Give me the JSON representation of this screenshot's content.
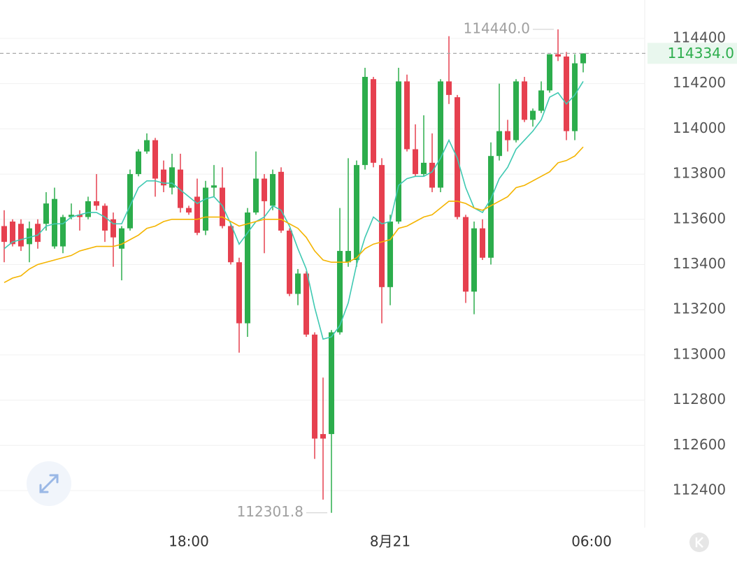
{
  "chart_data": {
    "type": "candlestick",
    "x": [
      0,
      1,
      2,
      3,
      4,
      5,
      6,
      7,
      8,
      9,
      10,
      11,
      12,
      13,
      14,
      15,
      16,
      17,
      18,
      19,
      20,
      21,
      22,
      23,
      24,
      25,
      26,
      27,
      28,
      29,
      30,
      31,
      32,
      33,
      34,
      35,
      36,
      37,
      38,
      39,
      40,
      41,
      42,
      43,
      44,
      45,
      46,
      47,
      48,
      49,
      50,
      51,
      52,
      53,
      54,
      55,
      56,
      57,
      58,
      59,
      60,
      61,
      62,
      63,
      64,
      65,
      66,
      67,
      68,
      69
    ],
    "open": [
      113570,
      113590,
      113580,
      113490,
      113580,
      113580,
      113480,
      113480,
      113610,
      113620,
      113610,
      113680,
      113660,
      113600,
      113470,
      113560,
      113800,
      113900,
      113950,
      113820,
      113740,
      113820,
      113650,
      113700,
      113550,
      113740,
      113740,
      113570,
      113410,
      113140,
      113630,
      113780,
      113660,
      113810,
      113550,
      113270,
      113360,
      113090,
      112650,
      112650,
      113100,
      113410,
      113420,
      113840,
      114220,
      113840,
      113300,
      113590,
      114210,
      113910,
      113800,
      113850,
      113740,
      114210,
      114140,
      113610,
      113280,
      113560,
      113430,
      113880,
      113990,
      113950,
      114210,
      114040,
      114080,
      114170,
      114330,
      114320,
      113990,
      114290
    ],
    "high": [
      113640,
      113600,
      113600,
      113590,
      113600,
      113720,
      113740,
      113620,
      113670,
      113640,
      113700,
      113800,
      113670,
      113630,
      113570,
      113820,
      113910,
      113980,
      113960,
      113860,
      113890,
      113890,
      113660,
      113780,
      113770,
      113840,
      113830,
      113580,
      113430,
      113650,
      113900,
      113800,
      113820,
      113830,
      113560,
      113380,
      113370,
      113100,
      112900,
      113110,
      113650,
      113870,
      113860,
      114270,
      114230,
      113870,
      113620,
      114270,
      114240,
      114020,
      114060,
      113980,
      114220,
      114410,
      114150,
      113620,
      113590,
      113600,
      113940,
      114200,
      114040,
      114220,
      114230,
      114090,
      114210,
      114330,
      114440,
      114340,
      114330,
      114334
    ],
    "low": [
      113410,
      113480,
      113460,
      113410,
      113470,
      113550,
      113470,
      113450,
      113600,
      113550,
      113600,
      113640,
      113500,
      113390,
      113330,
      113550,
      113790,
      113890,
      113700,
      113720,
      113710,
      113630,
      113620,
      113530,
      113530,
      113700,
      113560,
      113400,
      113010,
      113080,
      113620,
      113450,
      113640,
      113540,
      113260,
      113220,
      113080,
      112540,
      112360,
      112301.8,
      113090,
      113390,
      113390,
      113820,
      113830,
      113140,
      113220,
      113580,
      113900,
      113790,
      113790,
      113720,
      113720,
      114110,
      113600,
      113230,
      113180,
      113420,
      113400,
      113860,
      113900,
      113940,
      114030,
      114010,
      114070,
      114160,
      114300,
      113950,
      113950,
      114250
    ],
    "close": [
      113500,
      113490,
      113480,
      113560,
      113500,
      113670,
      113690,
      113610,
      113620,
      113610,
      113680,
      113660,
      113550,
      113520,
      113560,
      113800,
      113900,
      113950,
      113780,
      113750,
      113830,
      113650,
      113630,
      113540,
      113740,
      113750,
      113570,
      113410,
      113140,
      113630,
      113780,
      113680,
      113800,
      113550,
      113270,
      113360,
      113090,
      112630,
      112630,
      113100,
      113460,
      113460,
      113840,
      114230,
      113850,
      113300,
      113590,
      114210,
      113910,
      113800,
      113850,
      113740,
      114210,
      114150,
      113610,
      113280,
      113560,
      113430,
      113880,
      113990,
      113950,
      114210,
      114040,
      114080,
      114170,
      114330,
      114320,
      113990,
      114290,
      114334
    ],
    "up_color": "#2cad4c",
    "down_color": "#e6404f",
    "series": [
      {
        "color": "#3fc9b2",
        "values": [
          113470,
          113500,
          113510,
          113520,
          113530,
          113570,
          113580,
          113580,
          113610,
          113620,
          113630,
          113630,
          113610,
          113580,
          113580,
          113660,
          113740,
          113770,
          113770,
          113760,
          113760,
          113730,
          113700,
          113670,
          113690,
          113700,
          113660,
          113580,
          113490,
          113540,
          113590,
          113610,
          113660,
          113640,
          113570,
          113470,
          113380,
          113210,
          113070,
          113080,
          113130,
          113230,
          113400,
          113520,
          113610,
          113580,
          113590,
          113750,
          113780,
          113790,
          113790,
          113810,
          113870,
          113950,
          113870,
          113740,
          113650,
          113630,
          113690,
          113780,
          113830,
          113910,
          113950,
          113990,
          114040,
          114140,
          114160,
          114110,
          114150,
          114210
        ]
      },
      {
        "color": "#f4b400",
        "values": [
          113320,
          113340,
          113350,
          113380,
          113400,
          113410,
          113420,
          113430,
          113440,
          113460,
          113470,
          113480,
          113480,
          113480,
          113490,
          113510,
          113530,
          113560,
          113570,
          113590,
          113600,
          113600,
          113600,
          113600,
          113610,
          113610,
          113610,
          113590,
          113570,
          113580,
          113590,
          113600,
          113600,
          113600,
          113580,
          113560,
          113520,
          113460,
          113420,
          113410,
          113410,
          113410,
          113430,
          113470,
          113490,
          113500,
          113510,
          113560,
          113570,
          113590,
          113610,
          113620,
          113650,
          113680,
          113680,
          113670,
          113650,
          113640,
          113660,
          113680,
          113700,
          113740,
          113750,
          113770,
          113790,
          113810,
          113850,
          113860,
          113880,
          113920
        ]
      }
    ],
    "high_label": "114440.0",
    "low_label": "112301.8",
    "last_price_label": "114334.0",
    "xlim": [
      -0.5,
      76.33
    ],
    "xticks": [
      {
        "value": 22,
        "label": "18:00"
      },
      {
        "value": 46,
        "label": "8月21"
      },
      {
        "value": 70,
        "label": "06:00"
      }
    ],
    "ylim": [
      112236,
      114570
    ],
    "yticks": [
      112400,
      112600,
      112800,
      113000,
      113200,
      113400,
      113600,
      113800,
      114000,
      114200,
      114400
    ],
    "grid": true
  }
}
